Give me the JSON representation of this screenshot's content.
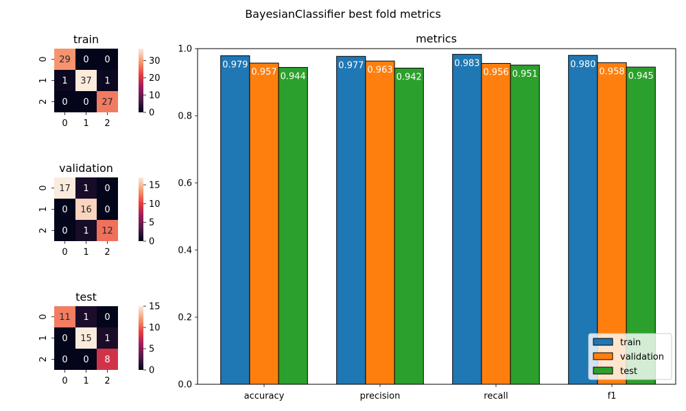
{
  "figure": {
    "suptitle": "BayesianClassifier best fold metrics"
  },
  "colorbar_palette": [
    "#03051A",
    "#4C1D4B",
    "#A11A5B",
    "#E83F3F",
    "#F69C73",
    "#FAEBDD"
  ],
  "chart_data": [
    {
      "type": "heatmap",
      "title": "train",
      "row_labels": [
        "0",
        "1",
        "2"
      ],
      "col_labels": [
        "0",
        "1",
        "2"
      ],
      "values": [
        [
          29,
          0,
          0
        ],
        [
          1,
          37,
          1
        ],
        [
          0,
          0,
          27
        ]
      ],
      "vmin": 0,
      "vmax": 37,
      "colorbar_ticks": [
        0,
        10,
        20,
        30
      ]
    },
    {
      "type": "heatmap",
      "title": "validation",
      "row_labels": [
        "0",
        "1",
        "2"
      ],
      "col_labels": [
        "0",
        "1",
        "2"
      ],
      "values": [
        [
          17,
          1,
          0
        ],
        [
          0,
          16,
          0
        ],
        [
          0,
          1,
          12
        ]
      ],
      "vmin": 0,
      "vmax": 17,
      "colorbar_ticks": [
        0,
        5,
        10,
        15
      ]
    },
    {
      "type": "heatmap",
      "title": "test",
      "row_labels": [
        "0",
        "1",
        "2"
      ],
      "col_labels": [
        "0",
        "1",
        "2"
      ],
      "values": [
        [
          11,
          1,
          0
        ],
        [
          0,
          15,
          1
        ],
        [
          0,
          0,
          8
        ]
      ],
      "vmin": 0,
      "vmax": 15,
      "colorbar_ticks": [
        0,
        5,
        10,
        15
      ]
    },
    {
      "type": "bar",
      "title": "metrics",
      "categories": [
        "accuracy",
        "precision",
        "recall",
        "f1"
      ],
      "series": [
        {
          "name": "train",
          "color": "#1F77B4",
          "values": [
            0.979,
            0.977,
            0.983,
            0.98
          ],
          "labels": [
            "0.979",
            "0.977",
            "0.983",
            "0.980"
          ]
        },
        {
          "name": "validation",
          "color": "#FF7F0E",
          "values": [
            0.957,
            0.963,
            0.956,
            0.958
          ],
          "labels": [
            "0.957",
            "0.963",
            "0.956",
            "0.958"
          ]
        },
        {
          "name": "test",
          "color": "#2CA02C",
          "values": [
            0.944,
            0.942,
            0.951,
            0.945
          ],
          "labels": [
            "0.944",
            "0.942",
            "0.951",
            "0.945"
          ]
        }
      ],
      "ylim": [
        0,
        1.0
      ],
      "yticks": [
        "0.0",
        "0.2",
        "0.4",
        "0.6",
        "0.8",
        "1.0"
      ],
      "legend_loc": "lower right",
      "grid": false
    }
  ]
}
